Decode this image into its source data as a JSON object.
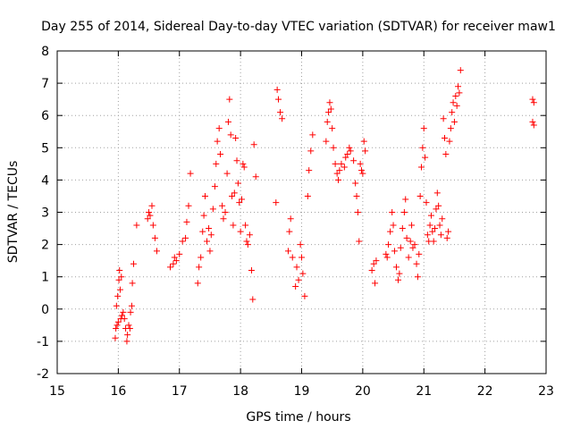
{
  "chart_data": {
    "type": "scatter",
    "title": "Day 255 of 2014, Sidereal Day-to-day VTEC variation (SDTVAR) for receiver maw1",
    "xlabel": "GPS time / hours",
    "ylabel": "SDTVAR / TECUs",
    "xlim": [
      15,
      23
    ],
    "ylim": [
      -2,
      8
    ],
    "xticks": [
      15,
      16,
      17,
      18,
      19,
      20,
      21,
      22,
      23
    ],
    "yticks": [
      -2,
      -1,
      0,
      1,
      2,
      3,
      4,
      5,
      6,
      7,
      8
    ],
    "xtick_labels": [
      "15",
      "16",
      "17",
      "18",
      "19",
      "20",
      "21",
      "22",
      "23"
    ],
    "ytick_labels": [
      "-2",
      "-1",
      "0",
      "1",
      "2",
      "3",
      "4",
      "5",
      "6",
      "7",
      "8"
    ],
    "grid": true,
    "marker": "+",
    "colors": {
      "points": "#ff0000",
      "grid": "#a0a0a0",
      "axes": "#000000",
      "background": "#ffffff"
    },
    "series": [
      {
        "name": "SDTVAR",
        "points": [
          [
            15.95,
            -0.9
          ],
          [
            15.96,
            -0.6
          ],
          [
            15.97,
            0.1
          ],
          [
            15.98,
            -0.5
          ],
          [
            15.99,
            0.4
          ],
          [
            16.0,
            -0.4
          ],
          [
            16.01,
            0.9
          ],
          [
            16.02,
            1.2
          ],
          [
            16.03,
            0.6
          ],
          [
            16.04,
            -0.3
          ],
          [
            16.05,
            1.0
          ],
          [
            16.06,
            -0.2
          ],
          [
            16.08,
            -0.1
          ],
          [
            16.1,
            -0.3
          ],
          [
            16.12,
            -0.6
          ],
          [
            16.14,
            -1.0
          ],
          [
            16.15,
            -0.8
          ],
          [
            16.17,
            -0.5
          ],
          [
            16.19,
            -0.6
          ],
          [
            16.2,
            -0.1
          ],
          [
            16.22,
            0.1
          ],
          [
            16.23,
            0.8
          ],
          [
            16.25,
            1.4
          ],
          [
            16.3,
            2.6
          ],
          [
            16.48,
            2.8
          ],
          [
            16.5,
            3.0
          ],
          [
            16.52,
            2.9
          ],
          [
            16.55,
            3.2
          ],
          [
            16.57,
            2.6
          ],
          [
            16.6,
            2.2
          ],
          [
            16.63,
            1.8
          ],
          [
            16.85,
            1.3
          ],
          [
            16.9,
            1.4
          ],
          [
            16.92,
            1.6
          ],
          [
            16.95,
            1.5
          ],
          [
            17.0,
            1.7
          ],
          [
            17.05,
            2.1
          ],
          [
            17.1,
            2.2
          ],
          [
            17.12,
            2.7
          ],
          [
            17.15,
            3.2
          ],
          [
            17.18,
            4.2
          ],
          [
            17.3,
            0.8
          ],
          [
            17.32,
            1.3
          ],
          [
            17.35,
            1.6
          ],
          [
            17.38,
            2.4
          ],
          [
            17.4,
            2.9
          ],
          [
            17.42,
            3.5
          ],
          [
            17.45,
            2.1
          ],
          [
            17.48,
            2.5
          ],
          [
            17.5,
            1.8
          ],
          [
            17.52,
            2.3
          ],
          [
            17.55,
            3.1
          ],
          [
            17.58,
            3.8
          ],
          [
            17.6,
            4.5
          ],
          [
            17.62,
            5.2
          ],
          [
            17.65,
            5.6
          ],
          [
            17.67,
            4.8
          ],
          [
            17.7,
            3.2
          ],
          [
            17.72,
            2.8
          ],
          [
            17.75,
            3.0
          ],
          [
            17.78,
            4.2
          ],
          [
            17.8,
            5.8
          ],
          [
            17.82,
            6.5
          ],
          [
            17.84,
            5.4
          ],
          [
            17.86,
            3.5
          ],
          [
            17.88,
            2.6
          ],
          [
            17.9,
            3.6
          ],
          [
            17.92,
            5.3
          ],
          [
            17.94,
            4.6
          ],
          [
            17.96,
            3.9
          ],
          [
            17.98,
            3.3
          ],
          [
            18.0,
            2.4
          ],
          [
            18.02,
            3.4
          ],
          [
            18.04,
            4.5
          ],
          [
            18.06,
            4.4
          ],
          [
            18.08,
            2.6
          ],
          [
            18.1,
            2.1
          ],
          [
            18.12,
            2.0
          ],
          [
            18.15,
            2.3
          ],
          [
            18.18,
            1.2
          ],
          [
            18.2,
            0.3
          ],
          [
            18.22,
            5.1
          ],
          [
            18.25,
            4.1
          ],
          [
            18.6,
            6.8
          ],
          [
            18.62,
            6.5
          ],
          [
            18.65,
            6.1
          ],
          [
            18.68,
            5.9
          ],
          [
            18.58,
            3.3
          ],
          [
            18.78,
            1.8
          ],
          [
            18.8,
            2.4
          ],
          [
            18.82,
            2.8
          ],
          [
            18.85,
            1.6
          ],
          [
            18.9,
            0.7
          ],
          [
            18.92,
            1.3
          ],
          [
            18.95,
            0.9
          ],
          [
            18.98,
            2.0
          ],
          [
            19.0,
            1.6
          ],
          [
            19.02,
            1.1
          ],
          [
            19.05,
            0.4
          ],
          [
            19.1,
            3.5
          ],
          [
            19.12,
            4.3
          ],
          [
            19.15,
            4.9
          ],
          [
            19.18,
            5.4
          ],
          [
            19.4,
            5.2
          ],
          [
            19.42,
            5.8
          ],
          [
            19.44,
            6.1
          ],
          [
            19.46,
            6.4
          ],
          [
            19.48,
            6.2
          ],
          [
            19.5,
            5.6
          ],
          [
            19.52,
            5.0
          ],
          [
            19.55,
            4.5
          ],
          [
            19.58,
            4.2
          ],
          [
            19.6,
            4.0
          ],
          [
            19.62,
            4.3
          ],
          [
            19.65,
            4.5
          ],
          [
            19.7,
            4.4
          ],
          [
            19.72,
            4.7
          ],
          [
            19.75,
            4.8
          ],
          [
            19.78,
            5.0
          ],
          [
            19.8,
            4.9
          ],
          [
            19.85,
            4.6
          ],
          [
            19.88,
            3.9
          ],
          [
            19.9,
            3.5
          ],
          [
            19.92,
            3.0
          ],
          [
            19.94,
            2.1
          ],
          [
            19.96,
            4.5
          ],
          [
            19.98,
            4.3
          ],
          [
            20.0,
            4.2
          ],
          [
            20.02,
            5.2
          ],
          [
            20.04,
            4.9
          ],
          [
            20.15,
            1.2
          ],
          [
            20.18,
            1.4
          ],
          [
            20.2,
            0.8
          ],
          [
            20.22,
            1.5
          ],
          [
            20.38,
            1.7
          ],
          [
            20.4,
            1.6
          ],
          [
            20.42,
            2.0
          ],
          [
            20.45,
            2.4
          ],
          [
            20.48,
            3.0
          ],
          [
            20.5,
            2.6
          ],
          [
            20.52,
            1.8
          ],
          [
            20.55,
            1.3
          ],
          [
            20.58,
            0.9
          ],
          [
            20.6,
            1.1
          ],
          [
            20.62,
            1.9
          ],
          [
            20.65,
            2.5
          ],
          [
            20.68,
            3.0
          ],
          [
            20.7,
            3.4
          ],
          [
            20.72,
            2.2
          ],
          [
            20.75,
            1.6
          ],
          [
            20.78,
            2.1
          ],
          [
            20.8,
            2.6
          ],
          [
            20.82,
            1.9
          ],
          [
            20.85,
            2.0
          ],
          [
            20.88,
            1.4
          ],
          [
            20.9,
            1.0
          ],
          [
            20.92,
            1.7
          ],
          [
            20.94,
            3.5
          ],
          [
            20.96,
            4.4
          ],
          [
            20.98,
            5.0
          ],
          [
            21.0,
            5.6
          ],
          [
            21.02,
            4.7
          ],
          [
            21.04,
            3.3
          ],
          [
            21.06,
            2.3
          ],
          [
            21.08,
            2.1
          ],
          [
            21.1,
            2.6
          ],
          [
            21.12,
            2.9
          ],
          [
            21.14,
            2.4
          ],
          [
            21.16,
            2.1
          ],
          [
            21.18,
            2.5
          ],
          [
            21.2,
            3.1
          ],
          [
            21.22,
            3.6
          ],
          [
            21.24,
            3.2
          ],
          [
            21.26,
            2.6
          ],
          [
            21.28,
            2.3
          ],
          [
            21.3,
            2.8
          ],
          [
            21.32,
            5.9
          ],
          [
            21.34,
            5.3
          ],
          [
            21.36,
            4.8
          ],
          [
            21.38,
            2.2
          ],
          [
            21.4,
            2.4
          ],
          [
            21.42,
            5.2
          ],
          [
            21.44,
            5.6
          ],
          [
            21.46,
            6.1
          ],
          [
            21.48,
            6.4
          ],
          [
            21.5,
            5.8
          ],
          [
            21.52,
            6.6
          ],
          [
            21.54,
            6.3
          ],
          [
            21.56,
            6.9
          ],
          [
            21.58,
            6.7
          ],
          [
            21.6,
            7.4
          ],
          [
            22.78,
            6.5
          ],
          [
            22.8,
            6.4
          ],
          [
            22.78,
            5.8
          ],
          [
            22.8,
            5.7
          ]
        ]
      }
    ]
  }
}
